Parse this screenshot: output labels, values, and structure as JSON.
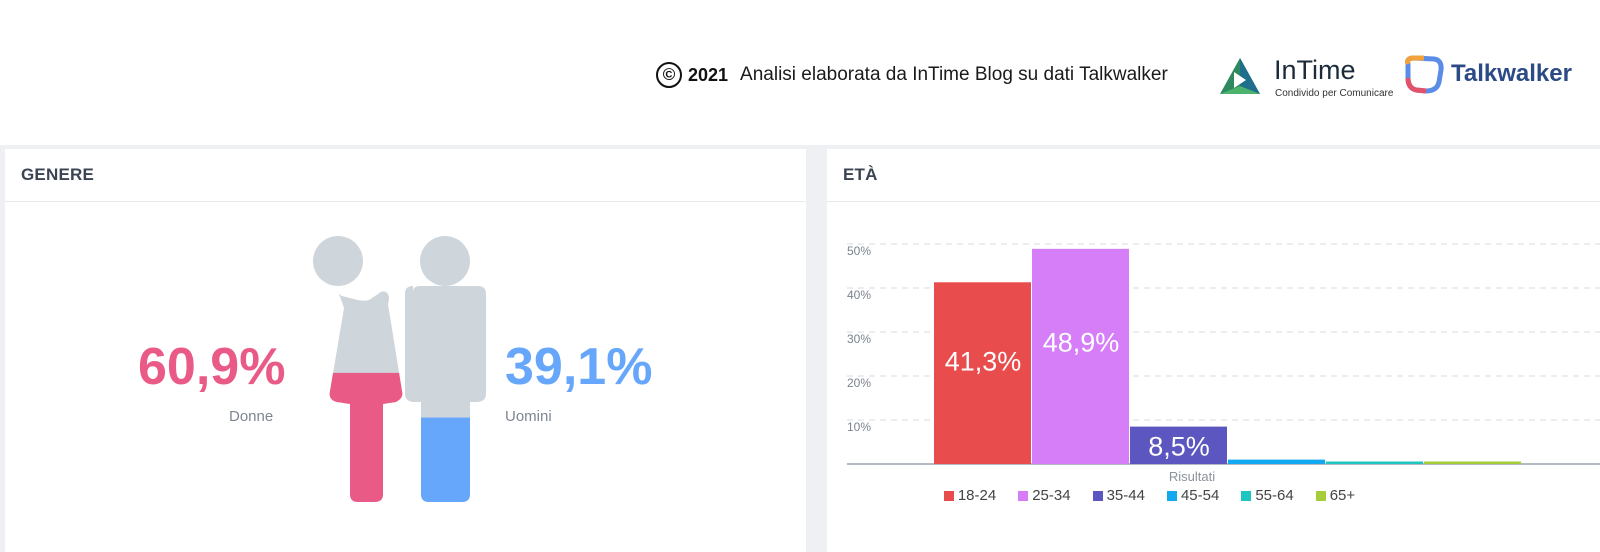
{
  "header": {
    "copyright_symbol": "©",
    "year": "2021",
    "credit": "Analisi elaborata da InTime Blog su dati Talkwalker",
    "intime_name": "InTime",
    "intime_tagline": "Condivido per Comunicare",
    "talkwalker_name": "Talkwalker"
  },
  "gender": {
    "title": "GENERE",
    "women_pct": "60,9%",
    "women_label": "Donne",
    "men_pct": "39,1%",
    "men_label": "Uomini",
    "women_value": 0.609,
    "men_value": 0.391,
    "colors": {
      "women": "#ea5a87",
      "men": "#66a7fb",
      "empty": "#cfd6db"
    }
  },
  "age": {
    "title": "ETÀ"
  },
  "chart_data": {
    "type": "bar",
    "title": "ETÀ",
    "xlabel": "Risultati",
    "ylabel": "",
    "ylim": [
      0,
      50
    ],
    "yticks": [
      "10%",
      "20%",
      "30%",
      "40%",
      "50%"
    ],
    "grid": true,
    "legend_position": "bottom",
    "categories": [
      "18-24",
      "25-34",
      "35-44",
      "45-54",
      "55-64",
      "65+"
    ],
    "values": [
      41.3,
      48.9,
      8.5,
      1.0,
      0.3,
      0.3
    ],
    "data_labels": [
      "41,3%",
      "48,9%",
      "8,5%",
      "",
      "",
      ""
    ],
    "colors": [
      "#e84c4c",
      "#d57ef7",
      "#5b56c0",
      "#12a9f0",
      "#1fc6c0",
      "#a5cd3a"
    ]
  }
}
